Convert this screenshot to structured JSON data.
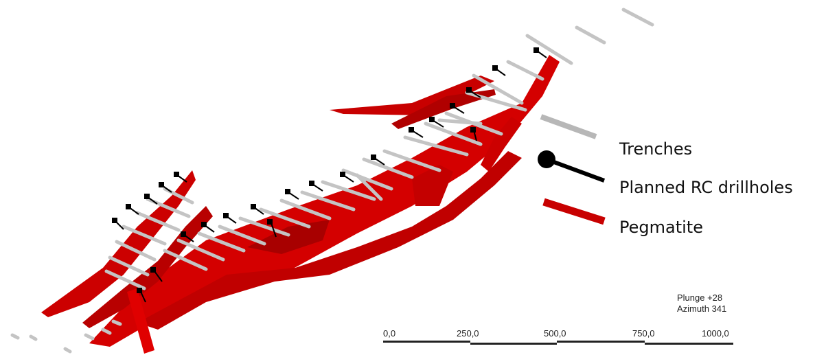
{
  "legend": {
    "items": [
      {
        "label": "Trenches",
        "symbol": "grey-bar-icon",
        "color": "#b7b7b7"
      },
      {
        "label": "Planned RC drillholes",
        "symbol": "drillhole-pin-icon",
        "color": "#000000"
      },
      {
        "label": "Pegmatite",
        "symbol": "red-bar-icon",
        "color": "#c80000"
      }
    ]
  },
  "view": {
    "plunge": "Plunge +28",
    "azimuth": "Azimuth 341"
  },
  "scale_bar": {
    "labels": [
      "0,0",
      "250,0",
      "500,0",
      "750,0",
      "1000,0"
    ]
  },
  "colors": {
    "pegmatite": "#d40000",
    "pegmatite_dark": "#a00000",
    "trench": "#c4c4c4",
    "drillhole": "#000000"
  }
}
